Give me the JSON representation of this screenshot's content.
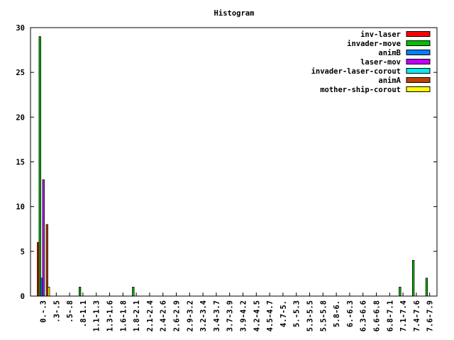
{
  "chart_data": {
    "type": "bar",
    "title": "Histogram",
    "xlabel": "",
    "ylabel": "",
    "ylim": [
      0,
      30
    ],
    "yticks": [
      "0",
      "5",
      "10",
      "15",
      "20",
      "25",
      "30"
    ],
    "legend_position": "top-right",
    "categories": [
      "0.-.3",
      ".3-.5",
      ".5-.8",
      ".8-1.1",
      "1.1-1.3",
      "1.3-1.6",
      "1.6-1.8",
      "1.8-2.1",
      "2.1-2.4",
      "2.4-2.6",
      "2.6-2.9",
      "2.9-3.2",
      "3.2-3.4",
      "3.4-3.7",
      "3.7-3.9",
      "3.9-4.2",
      "4.2-4.5",
      "4.5-4.7",
      "4.7-5.",
      "5.-5.3",
      "5.3-5.5",
      "5.5-5.8",
      "5.8-6.",
      "6.-6.3",
      "6.3-6.6",
      "6.6-6.8",
      "6.8-7.1",
      "7.1-7.4",
      "7.4-7.6",
      "7.6-7.9"
    ],
    "series": [
      {
        "name": "inv-laser",
        "color": "#ff0000",
        "values": [
          6,
          0,
          0,
          0,
          0,
          0,
          0,
          0,
          0,
          0,
          0,
          0,
          0,
          0,
          0,
          0,
          0,
          0,
          0,
          0,
          0,
          0,
          0,
          0,
          0,
          0,
          0,
          0,
          0,
          0
        ]
      },
      {
        "name": "invader-move",
        "color": "#00c000",
        "values": [
          29,
          0,
          0,
          1,
          0,
          0,
          0,
          1,
          0,
          0,
          0,
          0,
          0,
          0,
          0,
          0,
          0,
          0,
          0,
          0,
          0,
          0,
          0,
          0,
          0,
          0,
          0,
          1,
          4,
          2
        ]
      },
      {
        "name": "animB",
        "color": "#0080ff",
        "values": [
          2,
          0,
          0,
          0,
          0,
          0,
          0,
          0,
          0,
          0,
          0,
          0,
          0,
          0,
          0,
          0,
          0,
          0,
          0,
          0,
          0,
          0,
          0,
          0,
          0,
          0,
          0,
          0,
          0,
          0
        ]
      },
      {
        "name": "laser-mov",
        "color": "#c000ff",
        "values": [
          13,
          0,
          0,
          0,
          0,
          0,
          0,
          0,
          0,
          0,
          0,
          0,
          0,
          0,
          0,
          0,
          0,
          0,
          0,
          0,
          0,
          0,
          0,
          0,
          0,
          0,
          0,
          0,
          0,
          0
        ]
      },
      {
        "name": "invader-laser-corout",
        "color": "#00eeee",
        "values": [
          0,
          0,
          0,
          0,
          0,
          0,
          0,
          0,
          0,
          0,
          0,
          0,
          0,
          0,
          0,
          0,
          0,
          0,
          0,
          0,
          0,
          0,
          0,
          0,
          0,
          0,
          0,
          0,
          0,
          0
        ]
      },
      {
        "name": "animA",
        "color": "#c04000",
        "values": [
          8,
          0,
          0,
          0,
          0,
          0,
          0,
          0,
          0,
          0,
          0,
          0,
          0,
          0,
          0,
          0,
          0,
          0,
          0,
          0,
          0,
          0,
          0,
          0,
          0,
          0,
          0,
          0,
          0,
          0
        ]
      },
      {
        "name": "mother-ship-corout",
        "color": "#ffff00",
        "values": [
          1,
          0,
          0,
          0,
          0,
          0,
          0,
          0,
          0,
          0,
          0,
          0,
          0,
          0,
          0,
          0,
          0,
          0,
          0,
          0,
          0,
          0,
          0,
          0,
          0,
          0,
          0,
          0,
          0,
          0
        ]
      }
    ]
  }
}
